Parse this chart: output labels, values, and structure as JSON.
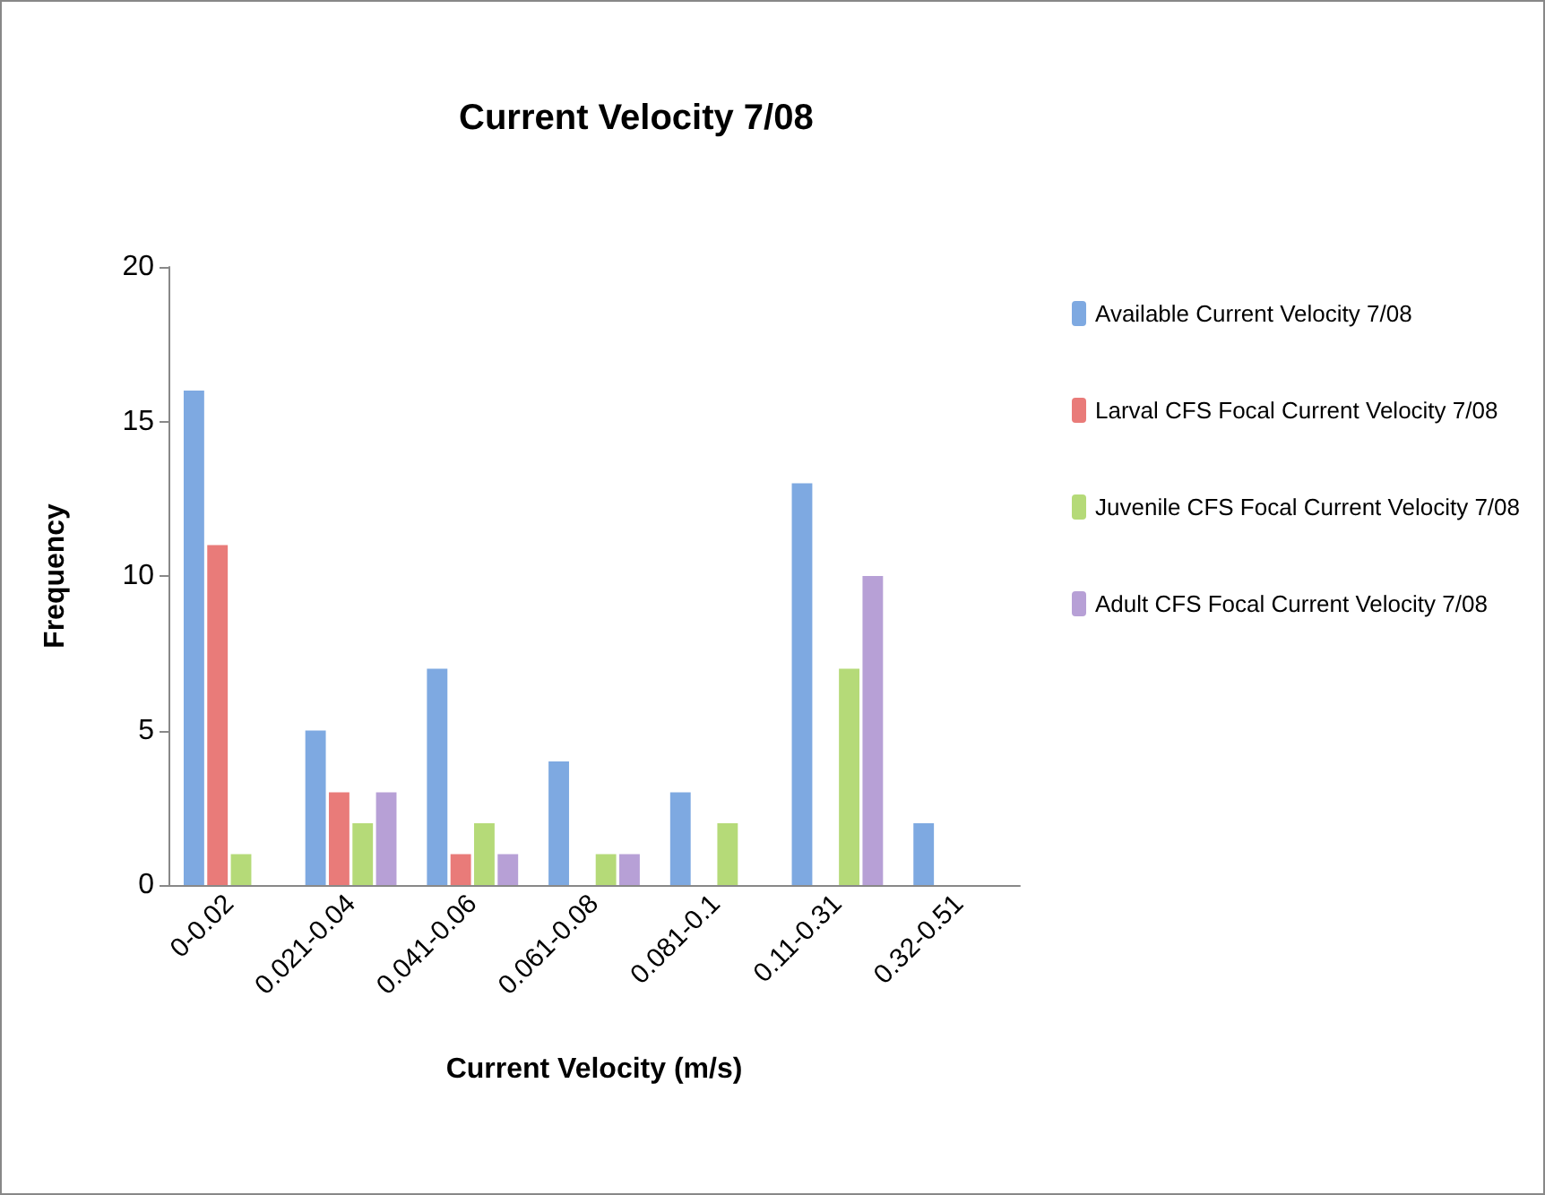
{
  "chart_data": {
    "type": "bar",
    "title": "Current Velocity 7/08",
    "xlabel": "Current Velocity (m/s)",
    "ylabel": "Frequency",
    "categories": [
      "0-0.02",
      "0.021-0.04",
      "0.041-0.06",
      "0.061-0.08",
      "0.081-0.1",
      "0.11-0.31",
      "0.32-0.51"
    ],
    "series": [
      {
        "name": "Available Current Velocity 7/08",
        "color": "#7ea9e1",
        "values": [
          16,
          5,
          7,
          4,
          3,
          13,
          2
        ]
      },
      {
        "name": "Larval CFS Focal Current Velocity 7/08",
        "color": "#e97b79",
        "values": [
          11,
          3,
          1,
          0,
          0,
          0,
          0
        ]
      },
      {
        "name": "Juvenile CFS Focal Current Velocity 7/08",
        "color": "#b5da78",
        "values": [
          1,
          2,
          2,
          1,
          2,
          7,
          0
        ]
      },
      {
        "name": "Adult CFS Focal Current Velocity 7/08",
        "color": "#b7a0d6",
        "values": [
          0,
          3,
          1,
          1,
          0,
          10,
          0
        ]
      }
    ],
    "ylim": [
      0,
      20
    ],
    "yticks": [
      0,
      5,
      10,
      15,
      20
    ],
    "grid": false,
    "legend": "right"
  }
}
